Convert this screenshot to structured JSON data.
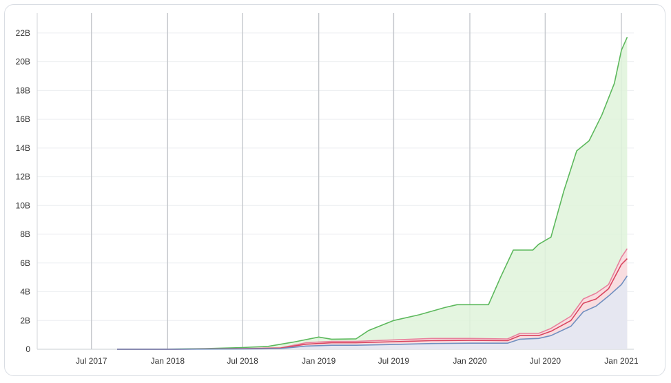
{
  "chart_data": {
    "type": "area",
    "title": "",
    "xlabel": "",
    "ylabel": "",
    "x_ticks": [
      "Jul 2017",
      "Jan 2018",
      "Jul 2018",
      "Jan 2019",
      "Jul 2019",
      "Jan 2020",
      "Jul 2020",
      "Jan 2021"
    ],
    "y_ticks": [
      "0",
      "2B",
      "4B",
      "6B",
      "8B",
      "10B",
      "12B",
      "14B",
      "16B",
      "18B",
      "20B",
      "22B"
    ],
    "ylim": [
      0,
      23000000000
    ],
    "xlim": [
      "2017-02-20",
      "2021-01-31"
    ],
    "grid": "vertical and horizontal",
    "legend": "none",
    "series": [
      {
        "color": "#5cb85c",
        "fill": "#dff3da",
        "points": [
          [
            "2017-09-01",
            0
          ],
          [
            "2018-01-01",
            0.01
          ],
          [
            "2018-04-01",
            0.05
          ],
          [
            "2018-07-01",
            0.12
          ],
          [
            "2018-09-01",
            0.2
          ],
          [
            "2018-11-01",
            0.5
          ],
          [
            "2019-01-01",
            0.85
          ],
          [
            "2019-02-01",
            0.7
          ],
          [
            "2019-04-01",
            0.72
          ],
          [
            "2019-05-01",
            1.3
          ],
          [
            "2019-07-01",
            2.0
          ],
          [
            "2019-09-01",
            2.4
          ],
          [
            "2019-11-01",
            2.9
          ],
          [
            "2019-12-01",
            3.1
          ],
          [
            "2020-01-15",
            3.1
          ],
          [
            "2020-02-15",
            3.1
          ],
          [
            "2020-03-15",
            5.0
          ],
          [
            "2020-04-15",
            6.9
          ],
          [
            "2020-06-01",
            6.9
          ],
          [
            "2020-06-15",
            7.3
          ],
          [
            "2020-07-15",
            7.8
          ],
          [
            "2020-08-15",
            11.0
          ],
          [
            "2020-09-15",
            13.8
          ],
          [
            "2020-10-15",
            14.5
          ],
          [
            "2020-11-15",
            16.3
          ],
          [
            "2020-12-15",
            18.5
          ],
          [
            "2021-01-01",
            20.8
          ],
          [
            "2021-01-15",
            21.7
          ]
        ]
      },
      {
        "color": "#e8809c",
        "fill": "#fbd8df",
        "points": [
          [
            "2017-09-01",
            0
          ],
          [
            "2018-01-01",
            0.0
          ],
          [
            "2018-07-01",
            0.05
          ],
          [
            "2018-10-01",
            0.1
          ],
          [
            "2018-12-01",
            0.45
          ],
          [
            "2019-02-01",
            0.55
          ],
          [
            "2019-04-01",
            0.55
          ],
          [
            "2019-07-01",
            0.65
          ],
          [
            "2019-10-01",
            0.75
          ],
          [
            "2020-01-01",
            0.75
          ],
          [
            "2020-04-01",
            0.72
          ],
          [
            "2020-05-01",
            1.1
          ],
          [
            "2020-06-15",
            1.1
          ],
          [
            "2020-07-15",
            1.45
          ],
          [
            "2020-09-01",
            2.3
          ],
          [
            "2020-10-01",
            3.5
          ],
          [
            "2020-11-01",
            3.9
          ],
          [
            "2020-12-01",
            4.5
          ],
          [
            "2021-01-01",
            6.4
          ],
          [
            "2021-01-15",
            7.0
          ]
        ]
      },
      {
        "color": "#d9455f",
        "fill": "none",
        "points": [
          [
            "2017-09-01",
            0
          ],
          [
            "2018-01-01",
            0.0
          ],
          [
            "2018-07-01",
            0.04
          ],
          [
            "2018-10-01",
            0.08
          ],
          [
            "2018-12-01",
            0.35
          ],
          [
            "2019-02-01",
            0.45
          ],
          [
            "2019-04-01",
            0.45
          ],
          [
            "2019-07-01",
            0.52
          ],
          [
            "2019-10-01",
            0.6
          ],
          [
            "2020-01-01",
            0.62
          ],
          [
            "2020-04-01",
            0.6
          ],
          [
            "2020-05-01",
            0.95
          ],
          [
            "2020-06-15",
            0.95
          ],
          [
            "2020-07-15",
            1.25
          ],
          [
            "2020-09-01",
            2.0
          ],
          [
            "2020-10-01",
            3.2
          ],
          [
            "2020-11-01",
            3.5
          ],
          [
            "2020-12-01",
            4.2
          ],
          [
            "2021-01-01",
            5.9
          ],
          [
            "2021-01-15",
            6.3
          ]
        ]
      },
      {
        "color": "#6f8fc0",
        "fill": "#e3e9f3",
        "points": [
          [
            "2017-09-01",
            0
          ],
          [
            "2018-01-01",
            0.0
          ],
          [
            "2018-07-01",
            0.02
          ],
          [
            "2018-10-01",
            0.05
          ],
          [
            "2018-12-01",
            0.22
          ],
          [
            "2019-02-01",
            0.28
          ],
          [
            "2019-04-01",
            0.28
          ],
          [
            "2019-07-01",
            0.33
          ],
          [
            "2019-10-01",
            0.4
          ],
          [
            "2020-01-01",
            0.42
          ],
          [
            "2020-04-01",
            0.42
          ],
          [
            "2020-05-01",
            0.7
          ],
          [
            "2020-06-15",
            0.75
          ],
          [
            "2020-07-15",
            0.95
          ],
          [
            "2020-09-01",
            1.6
          ],
          [
            "2020-10-01",
            2.6
          ],
          [
            "2020-11-01",
            3.0
          ],
          [
            "2020-12-01",
            3.7
          ],
          [
            "2021-01-01",
            4.5
          ],
          [
            "2021-01-15",
            5.1
          ]
        ]
      }
    ]
  }
}
